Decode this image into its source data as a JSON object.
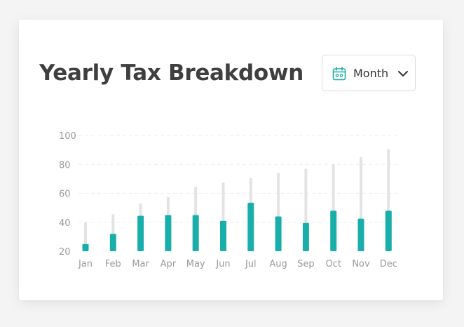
{
  "header": {
    "title": "Yearly Tax Breakdown"
  },
  "dropdown": {
    "selected": "Month",
    "icon": "calendar-icon",
    "chevron": "chevron-down-icon"
  },
  "colors": {
    "bar_primary": "#1aaeaa",
    "bar_background": "#e3e3e3",
    "gridline": "#ececec",
    "icon_accent": "#1aaeaa"
  },
  "chart_data": {
    "type": "bar",
    "categories": [
      "Jan",
      "Feb",
      "Mar",
      "Apr",
      "May",
      "Jun",
      "Jul",
      "Aug",
      "Sep",
      "Oct",
      "Nov",
      "Dec"
    ],
    "series": [
      {
        "values": [
          25,
          32,
          44.5,
          45,
          45,
          41,
          53.5,
          44,
          39.5,
          48,
          42.5,
          48
        ]
      },
      {
        "values": [
          40,
          45.5,
          53,
          57.5,
          64.5,
          67.5,
          70.5,
          74,
          77,
          80,
          85,
          90.5
        ]
      }
    ],
    "yticks": [
      100,
      80,
      60,
      40,
      20
    ],
    "ylim": [
      20,
      100
    ],
    "grid": true
  }
}
